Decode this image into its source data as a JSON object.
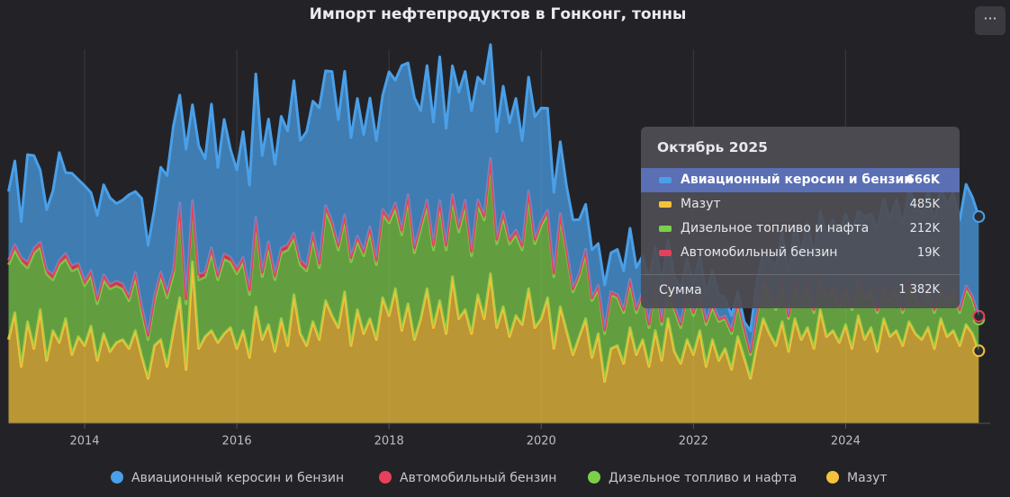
{
  "chart_data": {
    "type": "stacked-area",
    "title": "Импорт нефтепродуктов в Гонконг, тонны",
    "x": [
      "2013-01",
      "2013-02",
      "2013-03",
      "2013-04",
      "2013-05",
      "2013-06",
      "2013-07",
      "2013-08",
      "2013-09",
      "2013-10",
      "2013-11",
      "2013-12",
      "2014-01",
      "2014-02",
      "2014-03",
      "2014-04",
      "2014-05",
      "2014-06",
      "2014-07",
      "2014-08",
      "2014-09",
      "2014-10",
      "2014-11",
      "2014-12",
      "2015-01",
      "2015-02",
      "2015-03",
      "2015-04",
      "2015-05",
      "2015-06",
      "2015-07",
      "2015-08",
      "2015-09",
      "2015-10",
      "2015-11",
      "2015-12",
      "2016-01",
      "2016-02",
      "2016-03",
      "2016-04",
      "2016-05",
      "2016-06",
      "2016-07",
      "2016-08",
      "2016-09",
      "2016-10",
      "2016-11",
      "2016-12",
      "2017-01",
      "2017-02",
      "2017-03",
      "2017-04",
      "2017-05",
      "2017-06",
      "2017-07",
      "2017-08",
      "2017-09",
      "2017-10",
      "2017-11",
      "2017-12",
      "2018-01",
      "2018-02",
      "2018-03",
      "2018-04",
      "2018-05",
      "2018-06",
      "2018-07",
      "2018-08",
      "2018-09",
      "2018-10",
      "2018-11",
      "2018-12",
      "2019-01",
      "2019-02",
      "2019-03",
      "2019-04",
      "2019-05",
      "2019-06",
      "2019-07",
      "2019-08",
      "2019-09",
      "2019-10",
      "2019-11",
      "2019-12",
      "2020-01",
      "2020-02",
      "2020-03",
      "2020-04",
      "2020-05",
      "2020-06",
      "2020-07",
      "2020-08",
      "2020-09",
      "2020-10",
      "2020-11",
      "2020-12",
      "2021-01",
      "2021-02",
      "2021-03",
      "2021-04",
      "2021-05",
      "2021-06",
      "2021-07",
      "2021-08",
      "2021-09",
      "2021-10",
      "2021-11",
      "2021-12",
      "2022-01",
      "2022-02",
      "2022-03",
      "2022-04",
      "2022-05",
      "2022-06",
      "2022-07",
      "2022-08",
      "2022-09",
      "2022-10",
      "2022-11",
      "2022-12",
      "2023-01",
      "2023-02",
      "2023-03",
      "2023-04",
      "2023-05",
      "2023-06",
      "2023-07",
      "2023-08",
      "2023-09",
      "2023-10",
      "2023-11",
      "2023-12",
      "2024-01",
      "2024-02",
      "2024-03",
      "2024-04",
      "2024-05",
      "2024-06",
      "2024-07",
      "2024-08",
      "2024-09",
      "2024-10",
      "2024-11",
      "2024-12",
      "2025-01",
      "2025-02",
      "2025-03",
      "2025-04",
      "2025-05",
      "2025-06",
      "2025-07",
      "2025-08",
      "2025-09",
      "2025-10"
    ],
    "series": [
      {
        "name": "Авиационный керосин и бензин",
        "color": "#4a9fe8",
        "values": [
          460,
          560,
          240,
          720,
          620,
          480,
          400,
          560,
          720,
          540,
          620,
          560,
          640,
          520,
          560,
          600,
          580,
          520,
          560,
          680,
          540,
          720,
          600,
          580,
          700,
          780,
          960,
          720,
          1000,
          640,
          860,
          760,
          960,
          720,
          900,
          720,
          660,
          840,
          700,
          960,
          780,
          820,
          740,
          880,
          760,
          1020,
          800,
          900,
          880,
          1040,
          900,
          1000,
          840,
          960,
          800,
          920,
          780,
          860,
          800,
          760,
          980,
          820,
          1100,
          880,
          1000,
          760,
          900,
          820,
          960,
          780,
          860,
          900,
          860,
          940,
          820,
          880,
          760,
          720,
          840,
          780,
          880,
          700,
          760,
          820,
          760,
          680,
          540,
          480,
          420,
          460,
          360,
          300,
          320,
          280,
          300,
          260,
          300,
          260,
          340,
          280,
          240,
          300,
          220,
          260,
          240,
          200,
          240,
          220,
          200,
          240,
          180,
          220,
          160,
          120,
          100,
          60,
          40,
          140,
          200,
          180,
          220,
          260,
          300,
          280,
          340,
          320,
          380,
          360,
          420,
          400,
          440,
          460,
          480,
          500,
          460,
          520,
          500,
          540,
          560,
          520,
          580,
          560,
          600,
          620,
          600,
          640,
          580,
          660,
          620,
          640,
          600,
          680,
          660,
          666
        ]
      },
      {
        "name": "Автомобильный бензин",
        "color": "#e8405a",
        "values": [
          30,
          34,
          28,
          36,
          30,
          32,
          28,
          34,
          30,
          36,
          32,
          30,
          28,
          32,
          30,
          34,
          28,
          30,
          32,
          28,
          30,
          34,
          30,
          28,
          32,
          36,
          30,
          34,
          32,
          30,
          36,
          30,
          34,
          30,
          32,
          30,
          34,
          30,
          32,
          36,
          30,
          34,
          30,
          32,
          34,
          30,
          32,
          30,
          34,
          30,
          36,
          32,
          30,
          34,
          30,
          32,
          30,
          34,
          30,
          32,
          30,
          34,
          32,
          30,
          36,
          30,
          32,
          34,
          30,
          32,
          30,
          34,
          32,
          30,
          34,
          30,
          32,
          30,
          34,
          30,
          32,
          30,
          34,
          30,
          28,
          26,
          24,
          22,
          24,
          20,
          22,
          24,
          20,
          22,
          24,
          20,
          22,
          20,
          24,
          22,
          20,
          22,
          20,
          22,
          24,
          20,
          22,
          20,
          22,
          20,
          24,
          22,
          20,
          18,
          20,
          22,
          20,
          18,
          20,
          22,
          20,
          22,
          20,
          18,
          22,
          20,
          22,
          20,
          18,
          22,
          20,
          22,
          20,
          18,
          20,
          22,
          20,
          18,
          22,
          20,
          18,
          20,
          22,
          20,
          18,
          20,
          22,
          18,
          20,
          22,
          20,
          18,
          20,
          19
        ]
      },
      {
        "name": "Дизельное топливо и нафта",
        "color": "#7ccf4a",
        "values": [
          500,
          420,
          700,
          360,
          640,
          420,
          580,
          340,
          520,
          400,
          560,
          460,
          400,
          340,
          380,
          360,
          420,
          380,
          340,
          320,
          360,
          300,
          260,
          300,
          420,
          460,
          380,
          600,
          440,
          380,
          460,
          400,
          520,
          420,
          500,
          440,
          500,
          460,
          420,
          560,
          420,
          520,
          480,
          440,
          640,
          380,
          460,
          500,
          560,
          480,
          600,
          600,
          520,
          480,
          560,
          460,
          520,
          580,
          500,
          560,
          620,
          540,
          640,
          700,
          580,
          600,
          560,
          520,
          640,
          560,
          520,
          580,
          700,
          520,
          600,
          660,
          740,
          560,
          600,
          620,
          540,
          500,
          620,
          560,
          620,
          560,
          480,
          600,
          520,
          420,
          400,
          440,
          380,
          300,
          320,
          360,
          320,
          340,
          300,
          280,
          300,
          260,
          320,
          240,
          260,
          280,
          240,
          300,
          260,
          240,
          280,
          220,
          260,
          200,
          240,
          220,
          180,
          160,
          200,
          240,
          260,
          240,
          280,
          220,
          260,
          240,
          300,
          240,
          220,
          260,
          280,
          240,
          240,
          260,
          220,
          280,
          240,
          260,
          220,
          240,
          280,
          220,
          260,
          240,
          220,
          260,
          240,
          200,
          240,
          260,
          220,
          240,
          230,
          212
        ]
      },
      {
        "name": "Мазут",
        "color": "#f5c33b",
        "values": [
          560,
          740,
          380,
          680,
          500,
          760,
          420,
          620,
          540,
          700,
          460,
          580,
          520,
          650,
          420,
          600,
          480,
          540,
          560,
          500,
          620,
          450,
          300,
          520,
          560,
          380,
          620,
          840,
          360,
          1080,
          500,
          580,
          620,
          540,
          600,
          640,
          500,
          620,
          440,
          780,
          560,
          660,
          480,
          700,
          520,
          860,
          600,
          520,
          680,
          560,
          820,
          720,
          640,
          880,
          520,
          760,
          600,
          700,
          560,
          840,
          720,
          900,
          620,
          800,
          560,
          700,
          900,
          640,
          820,
          600,
          980,
          700,
          760,
          600,
          860,
          700,
          1000,
          640,
          780,
          580,
          720,
          660,
          900,
          640,
          700,
          840,
          500,
          780,
          620,
          460,
          580,
          700,
          440,
          600,
          280,
          500,
          520,
          400,
          640,
          460,
          560,
          380,
          620,
          420,
          700,
          480,
          400,
          560,
          460,
          620,
          380,
          560,
          420,
          500,
          360,
          580,
          440,
          300,
          520,
          700,
          600,
          520,
          680,
          480,
          700,
          560,
          640,
          500,
          760,
          580,
          620,
          540,
          660,
          500,
          720,
          560,
          640,
          480,
          700,
          580,
          620,
          520,
          680,
          600,
          560,
          640,
          500,
          700,
          580,
          620,
          520,
          660,
          600,
          485
        ]
      }
    ],
    "xlim": [
      2013,
      2025.9
    ],
    "xticks": [
      2014,
      2016,
      2018,
      2020,
      2022,
      2024
    ],
    "ylim": [
      0,
      2560
    ],
    "grid": true,
    "tooltip": {
      "title": "Октябрь 2025",
      "rows": [
        {
          "name": "Авиационный керосин и бензин",
          "value": "666K"
        },
        {
          "name": "Мазут",
          "value": "485K"
        },
        {
          "name": "Дизельное топливо и нафта",
          "value": "212K"
        },
        {
          "name": "Автомобильный бензин",
          "value": "19K"
        }
      ],
      "total_name": "Сумма",
      "total": "1 382K"
    }
  }
}
